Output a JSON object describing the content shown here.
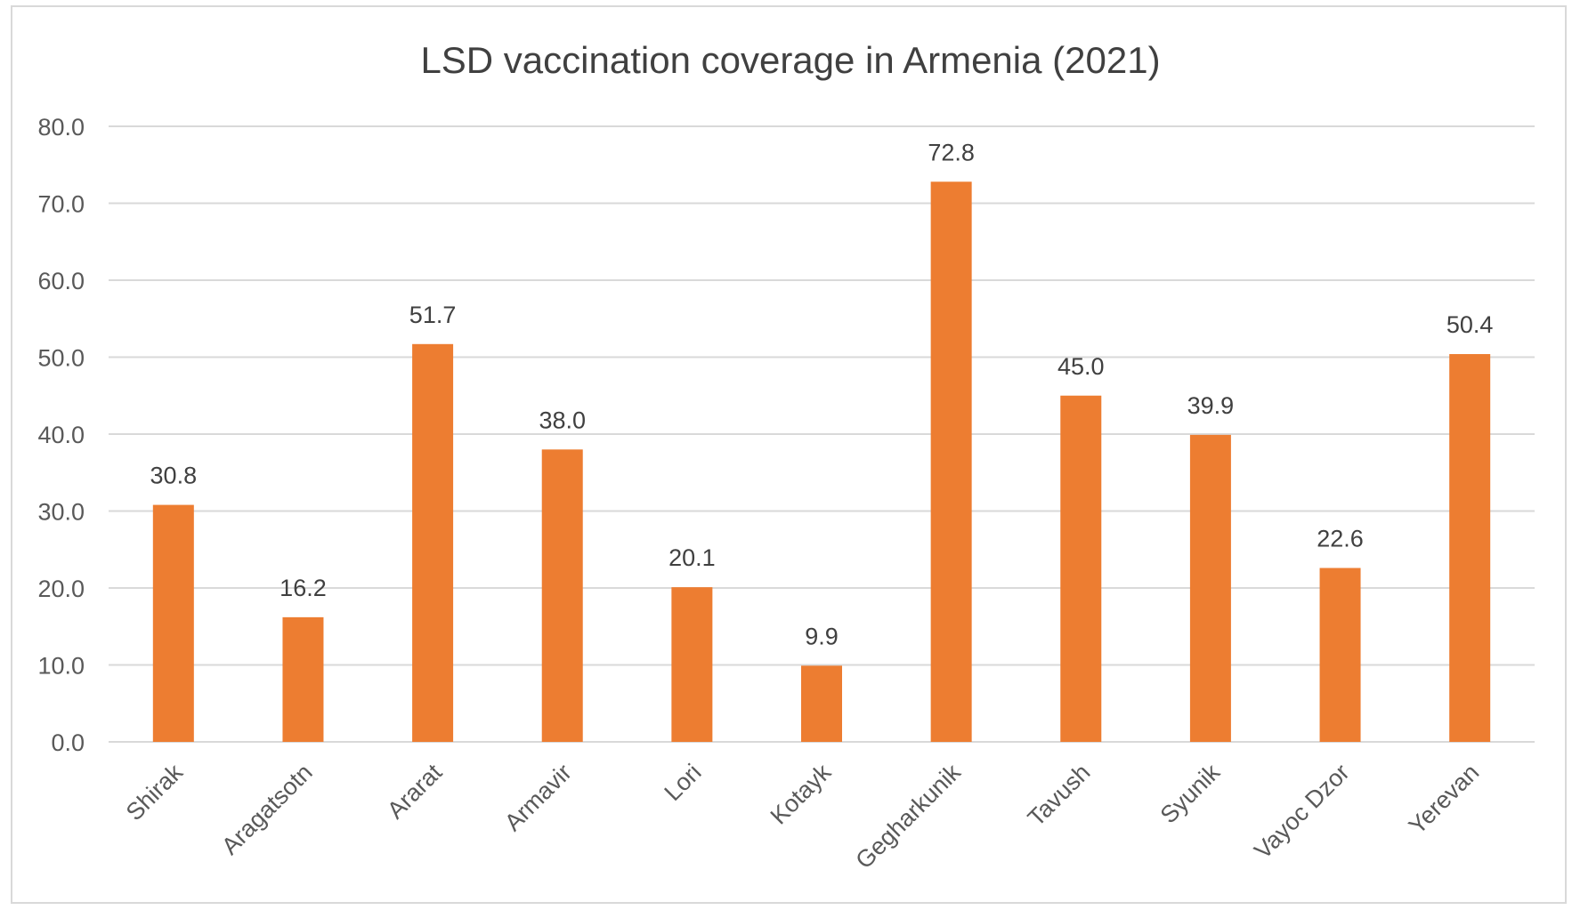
{
  "chart_data": {
    "type": "bar",
    "title": "LSD vaccination coverage in Armenia (2021)",
    "xlabel": "",
    "ylabel": "",
    "categories": [
      "Shirak",
      "Aragatsotn",
      "Ararat",
      "Armavir",
      "Lori",
      "Kotayk",
      "Gegharkunik",
      "Tavush",
      "Syunik",
      "Vayoc Dzor",
      "Yerevan"
    ],
    "values": [
      30.8,
      16.2,
      51.7,
      38.0,
      20.1,
      9.9,
      72.8,
      45.0,
      39.9,
      22.6,
      50.4
    ],
    "value_labels": [
      "30.8",
      "16.2",
      "51.7",
      "38.0",
      "20.1",
      "9.9",
      "72.8",
      "45.0",
      "39.9",
      "22.6",
      "50.4"
    ],
    "yticks": [
      0,
      10,
      20,
      30,
      40,
      50,
      60,
      70,
      80
    ],
    "ytick_labels": [
      "0.0",
      "10.0",
      "20.0",
      "30.0",
      "40.0",
      "50.0",
      "60.0",
      "70.0",
      "80.0"
    ],
    "ylim": [
      0,
      80
    ],
    "grid": true,
    "legend": "none",
    "bar_color": "#ed7d31",
    "grid_color": "#d9d9d9",
    "text_color": "#595959"
  }
}
